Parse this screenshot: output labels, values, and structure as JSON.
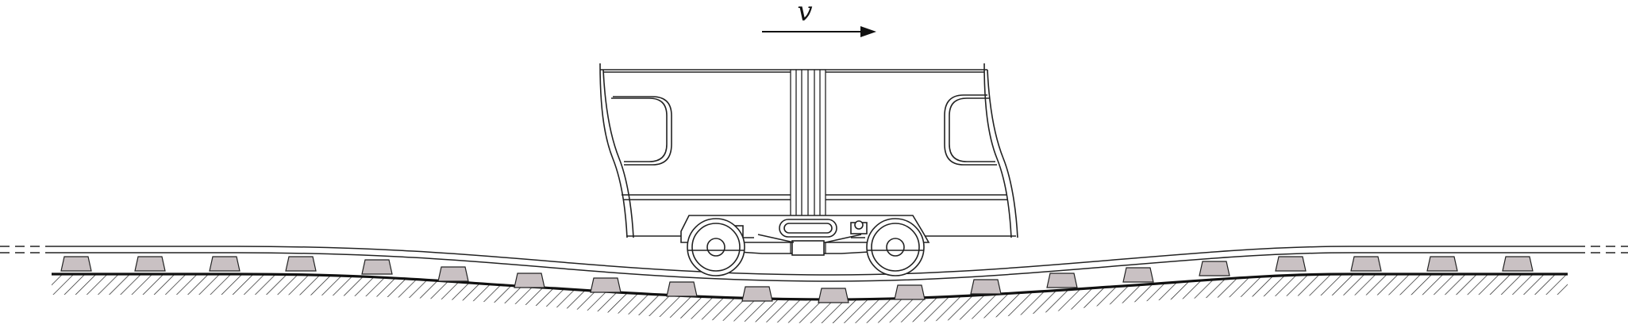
{
  "labels": {
    "velocity": "v"
  },
  "colors": {
    "stroke": "#222222",
    "sleeper_fill": "#c9c1c3",
    "background": "#ffffff"
  },
  "icons": {
    "velocity_arrow": "arrow-right-icon",
    "wheel": "wheel-icon"
  }
}
